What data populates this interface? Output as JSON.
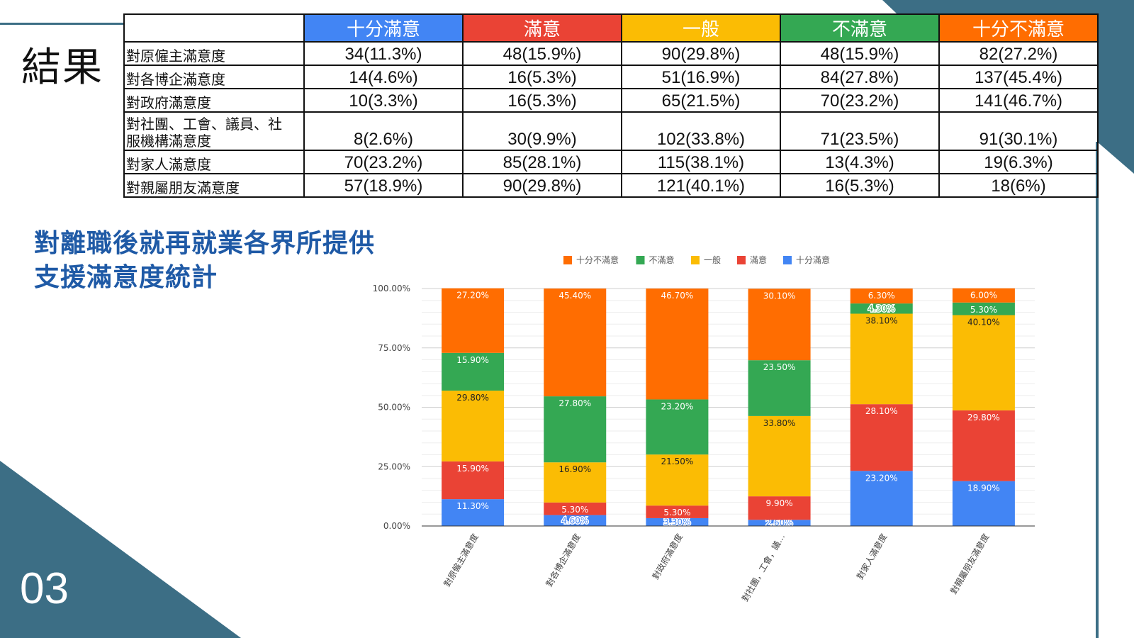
{
  "slide": {
    "title": "結果",
    "page_number": "03",
    "subtitle": "對離職後就再就業各界所提供支援滿意度統計"
  },
  "colors": {
    "very_satisfied": "#4285F4",
    "satisfied": "#EA4335",
    "neutral": "#FBBC04",
    "dissatisfied": "#34A853",
    "very_dissatisfied": "#FF6D01",
    "accent": "#3c6e85"
  },
  "table": {
    "headers": [
      "",
      "十分滿意",
      "滿意",
      "一般",
      "不滿意",
      "十分不滿意"
    ],
    "rows": [
      {
        "label": "對原僱主滿意度",
        "values": [
          "34(11.3%)",
          "48(15.9%)",
          "90(29.8%)",
          "48(15.9%)",
          "82(27.2%)"
        ]
      },
      {
        "label": "對各博企滿意度",
        "values": [
          "14(4.6%)",
          "16(5.3%)",
          "51(16.9%)",
          "84(27.8%)",
          "137(45.4%)"
        ]
      },
      {
        "label": "對政府滿意度",
        "values": [
          "10(3.3%)",
          "16(5.3%)",
          "65(21.5%)",
          "70(23.2%)",
          "141(46.7%)"
        ]
      },
      {
        "label_lines": [
          "對社團、工會、議員、社",
          "服機構滿意度"
        ],
        "values": [
          "8(2.6%)",
          "30(9.9%)",
          "102(33.8%)",
          "71(23.5%)",
          "91(30.1%)"
        ]
      },
      {
        "label": "對家人滿意度",
        "values": [
          "70(23.2%)",
          "85(28.1%)",
          "115(38.1%)",
          "13(4.3%)",
          "19(6.3%)"
        ]
      },
      {
        "label": "對親屬朋友滿意度",
        "values": [
          "57(18.9%)",
          "90(29.8%)",
          "121(40.1%)",
          "16(5.3%)",
          "18(6%)"
        ]
      }
    ]
  },
  "chart_data": {
    "type": "bar",
    "stacked": true,
    "categories": [
      "對原僱主滿意度",
      "對各博企滿意度",
      "對政府滿意度",
      "對社團，工會，議…",
      "對家人滿意度",
      "對親屬朋友滿意度"
    ],
    "series": [
      {
        "name": "十分滿意",
        "color": "#4285F4",
        "values": [
          11.3,
          4.6,
          3.3,
          2.6,
          23.2,
          18.9
        ],
        "labels": [
          "11.30%",
          "4.60%",
          "3.30%",
          "2.60%",
          "23.20%",
          "18.90%"
        ]
      },
      {
        "name": "滿意",
        "color": "#EA4335",
        "values": [
          15.9,
          5.3,
          5.3,
          9.9,
          28.1,
          29.8
        ],
        "labels": [
          "15.90%",
          "5.30%",
          "5.30%",
          "9.90%",
          "28.10%",
          "29.80%"
        ]
      },
      {
        "name": "一般",
        "color": "#FBBC04",
        "values": [
          29.8,
          16.9,
          21.5,
          33.8,
          38.1,
          40.1
        ],
        "labels": [
          "29.80%",
          "16.90%",
          "21.50%",
          "33.80%",
          "38.10%",
          "40.10%"
        ]
      },
      {
        "name": "不滿意",
        "color": "#34A853",
        "values": [
          15.9,
          27.8,
          23.2,
          23.5,
          4.3,
          5.3
        ],
        "labels": [
          "15.90%",
          "27.80%",
          "23.20%",
          "23.50%",
          "4.30%",
          "5.30%"
        ]
      },
      {
        "name": "十分不滿意",
        "color": "#FF6D01",
        "values": [
          27.2,
          45.4,
          46.7,
          30.1,
          6.3,
          6.0
        ],
        "labels": [
          "27.20%",
          "45.40%",
          "46.70%",
          "30.10%",
          "6.30%",
          "6.00%"
        ]
      }
    ],
    "legend_order": [
      "十分不滿意",
      "不滿意",
      "一般",
      "滿意",
      "十分滿意"
    ],
    "legend_position": "top",
    "y_ticks": [
      "0.00%",
      "25.00%",
      "50.00%",
      "75.00%",
      "100.00%"
    ],
    "ylim": [
      0,
      100
    ],
    "grid": true
  }
}
